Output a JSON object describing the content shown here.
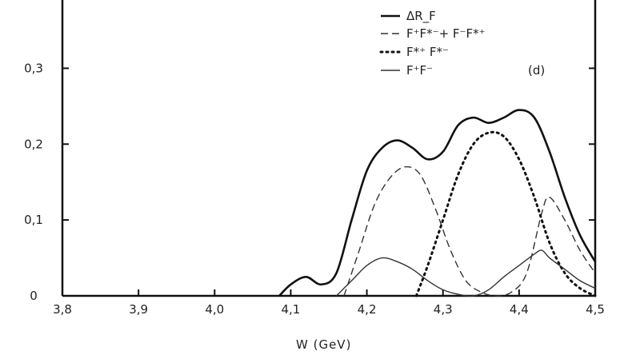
{
  "chart_data": {
    "type": "line",
    "xlabel": "W (GeV)",
    "ylabel": "",
    "panel_label": "(d)",
    "xlim": [
      3.8,
      4.5
    ],
    "ylim": [
      0,
      0.39
    ],
    "x_ticks": [
      3.8,
      3.9,
      4.0,
      4.1,
      4.2,
      4.3,
      4.4,
      4.5
    ],
    "x_tick_labels": [
      "3,8",
      "3,9",
      "4,0",
      "4,1",
      "4,2",
      "4,3",
      "4,4",
      "4,5"
    ],
    "y_ticks": [
      0,
      0.1,
      0.2,
      0.3
    ],
    "y_tick_labels": [
      "0",
      "0,1",
      "0,2",
      "0,3"
    ],
    "grid": false,
    "legend_position": "top-right",
    "series": [
      {
        "name": "ΔR_F",
        "style": "solid-thick",
        "x": [
          4.085,
          4.1,
          4.12,
          4.14,
          4.16,
          4.18,
          4.2,
          4.22,
          4.24,
          4.26,
          4.28,
          4.3,
          4.32,
          4.34,
          4.36,
          4.38,
          4.4,
          4.42,
          4.44,
          4.46,
          4.48,
          4.5
        ],
        "y": [
          0.0,
          0.015,
          0.025,
          0.015,
          0.03,
          0.1,
          0.165,
          0.195,
          0.205,
          0.195,
          0.18,
          0.19,
          0.225,
          0.235,
          0.228,
          0.235,
          0.245,
          0.235,
          0.19,
          0.13,
          0.08,
          0.045
        ]
      },
      {
        "name": "F⁺F*⁻+ F⁻F*⁺",
        "style": "dashed",
        "x": [
          4.17,
          4.19,
          4.21,
          4.23,
          4.25,
          4.27,
          4.29,
          4.31,
          4.33,
          4.35,
          4.37,
          4.39,
          4.41,
          4.43,
          4.44,
          4.46,
          4.48,
          4.5
        ],
        "y": [
          0.0,
          0.06,
          0.12,
          0.155,
          0.17,
          0.16,
          0.115,
          0.06,
          0.02,
          0.005,
          0.0,
          0.005,
          0.03,
          0.11,
          0.13,
          0.1,
          0.06,
          0.03
        ]
      },
      {
        "name": "F*⁺ F*⁻",
        "style": "dotted",
        "x": [
          4.265,
          4.28,
          4.3,
          4.32,
          4.34,
          4.36,
          4.38,
          4.4,
          4.42,
          4.44,
          4.46,
          4.48,
          4.5
        ],
        "y": [
          0.0,
          0.04,
          0.1,
          0.16,
          0.2,
          0.215,
          0.21,
          0.18,
          0.13,
          0.07,
          0.03,
          0.01,
          0.0
        ]
      },
      {
        "name": "F⁺F⁻",
        "style": "solid-thin",
        "x": [
          4.16,
          4.18,
          4.2,
          4.22,
          4.24,
          4.26,
          4.28,
          4.3,
          4.32,
          4.34,
          4.36,
          4.38,
          4.4,
          4.42,
          4.43,
          4.44,
          4.46,
          4.48,
          4.5
        ],
        "y": [
          0.0,
          0.02,
          0.04,
          0.05,
          0.045,
          0.035,
          0.02,
          0.008,
          0.002,
          0.0,
          0.008,
          0.025,
          0.04,
          0.055,
          0.06,
          0.05,
          0.035,
          0.02,
          0.01
        ]
      }
    ]
  }
}
